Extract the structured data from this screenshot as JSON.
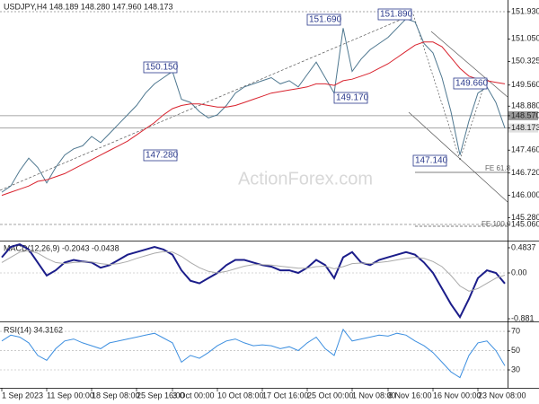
{
  "header": "USDJPY,H4 148.189 148.280 147.960 148.173",
  "watermark": "ActionForex.com",
  "chart_data": [
    {
      "type": "line",
      "categories": [
        "1 Sep 2023",
        null,
        null,
        null,
        null,
        "11 Sep 00:00",
        null,
        null,
        null,
        null,
        "18 Sep 08:00",
        null,
        null,
        null,
        null,
        "25 Sep 16:00",
        null,
        null,
        null,
        "3 Oct 00:00",
        null,
        null,
        null,
        null,
        "10 Oct 08:00",
        null,
        null,
        null,
        null,
        "17 Oct 16:00",
        null,
        null,
        null,
        null,
        "25 Oct 00:00",
        null,
        null,
        null,
        null,
        "1 Nov 08:00",
        null,
        null,
        null,
        "8 Nov 16:00",
        null,
        null,
        null,
        null,
        "16 Nov 00:00",
        null,
        null,
        null,
        null,
        "23 Nov 08:00",
        null,
        null,
        null
      ],
      "series": [
        {
          "color": "#4f7890",
          "values": [
            146.1,
            146.3,
            146.8,
            147.2,
            146.9,
            146.4,
            146.9,
            147.3,
            147.5,
            147.6,
            147.9,
            147.7,
            148.0,
            148.3,
            148.6,
            148.9,
            149.3,
            149.6,
            149.8,
            150.0,
            149.1,
            149.0,
            148.7,
            148.5,
            148.6,
            148.9,
            149.3,
            149.5,
            149.6,
            149.7,
            149.8,
            149.6,
            149.7,
            149.5,
            149.9,
            150.3,
            149.8,
            149.3,
            151.4,
            150.0,
            150.4,
            150.7,
            150.9,
            151.1,
            151.4,
            151.7,
            151.6,
            150.9,
            150.6,
            149.8,
            148.7,
            147.3,
            148.4,
            149.3,
            149.5,
            149.0,
            148.173
          ]
        },
        {
          "color": "#d9232e",
          "values": [
            146.0,
            146.1,
            146.2,
            146.3,
            146.45,
            146.5,
            146.6,
            146.7,
            146.85,
            147.0,
            147.15,
            147.3,
            147.45,
            147.6,
            147.75,
            147.95,
            148.15,
            148.35,
            148.6,
            148.8,
            148.9,
            148.95,
            148.95,
            148.9,
            148.85,
            148.85,
            148.9,
            149.0,
            149.1,
            149.2,
            149.3,
            149.35,
            149.4,
            149.45,
            149.5,
            149.6,
            149.6,
            149.55,
            149.7,
            149.75,
            149.85,
            149.95,
            150.1,
            150.25,
            150.45,
            150.65,
            150.85,
            150.95,
            150.95,
            150.8,
            150.45,
            150.1,
            149.85,
            149.75,
            149.7,
            149.65,
            149.6
          ]
        }
      ],
      "ylim": [
        144.538,
        152.307
      ],
      "yticks": [
        {
          "value": 151.93,
          "label": "151.930"
        },
        {
          "value": 151.05,
          "label": "151.050"
        },
        150.325,
        {
          "value": 149.56,
          "label": "149.560"
        },
        {
          "value": 148.88,
          "label": "148.880"
        },
        {
          "value": 148.57,
          "label": "148.570"
        },
        148.173,
        {
          "value": 147.46,
          "label": "147.460"
        },
        {
          "value": 146.72,
          "label": "146.720"
        },
        {
          "value": 146.0,
          "label": "146.000"
        },
        {
          "value": 145.28,
          "label": "145.280"
        },
        {
          "value": 145.06,
          "label": "145.060"
        }
      ],
      "annotations": [
        "151.690",
        "151.890",
        "150.150",
        "149.170",
        "147.280",
        "147.140",
        "149.660",
        "FE 61.8",
        "FE 100.0"
      ]
    },
    {
      "type": "line",
      "title": "MACD(12,26,9) -0.2043 -0.0438",
      "series": [
        {
          "color": "#1b1d8a",
          "values": [
            0.3,
            0.5,
            0.55,
            0.45,
            0.2,
            -0.05,
            0.05,
            0.2,
            0.25,
            0.22,
            0.2,
            0.1,
            0.15,
            0.25,
            0.35,
            0.4,
            0.45,
            0.5,
            0.45,
            0.35,
            0.05,
            -0.15,
            -0.2,
            -0.1,
            0.0,
            0.15,
            0.25,
            0.25,
            0.2,
            0.15,
            0.12,
            0.05,
            0.05,
            0.0,
            0.1,
            0.25,
            0.15,
            -0.1,
            0.3,
            0.4,
            0.2,
            0.15,
            0.25,
            0.3,
            0.35,
            0.4,
            0.35,
            0.2,
            0.0,
            -0.3,
            -0.6,
            -0.85,
            -0.5,
            -0.1,
            0.05,
            0.0,
            -0.2043
          ]
        },
        {
          "color": "#aaaaaa",
          "values": [
            0.2,
            0.3,
            0.4,
            0.43,
            0.38,
            0.28,
            0.2,
            0.18,
            0.2,
            0.21,
            0.21,
            0.18,
            0.16,
            0.18,
            0.22,
            0.28,
            0.33,
            0.38,
            0.41,
            0.4,
            0.32,
            0.2,
            0.1,
            0.03,
            0.0,
            0.03,
            0.08,
            0.13,
            0.16,
            0.16,
            0.15,
            0.13,
            0.11,
            0.09,
            0.09,
            0.12,
            0.13,
            0.08,
            0.12,
            0.18,
            0.19,
            0.18,
            0.2,
            0.22,
            0.25,
            0.28,
            0.3,
            0.28,
            0.22,
            0.12,
            -0.05,
            -0.25,
            -0.35,
            -0.3,
            -0.2,
            -0.1,
            -0.0438
          ]
        }
      ],
      "ylim": [
        -0.915,
        0.587
      ],
      "yticks": [
        0.4837,
        {
          "value": 0,
          "label": "0.00"
        },
        -0.881
      ]
    },
    {
      "type": "line",
      "title": "RSI(14) 34.3162",
      "series": [
        {
          "color": "#3d8fe0",
          "values": [
            60,
            66,
            64,
            58,
            45,
            40,
            52,
            60,
            62,
            58,
            55,
            52,
            58,
            60,
            62,
            64,
            66,
            68,
            63,
            58,
            38,
            45,
            42,
            48,
            55,
            60,
            62,
            58,
            55,
            56,
            55,
            52,
            54,
            50,
            58,
            64,
            52,
            45,
            72,
            60,
            62,
            64,
            66,
            65,
            68,
            66,
            60,
            55,
            48,
            38,
            28,
            22,
            45,
            58,
            60,
            50,
            34.3162
          ]
        }
      ],
      "ylim": [
        11.4,
        78.4
      ],
      "yticks": [
        70,
        50,
        30
      ]
    }
  ]
}
